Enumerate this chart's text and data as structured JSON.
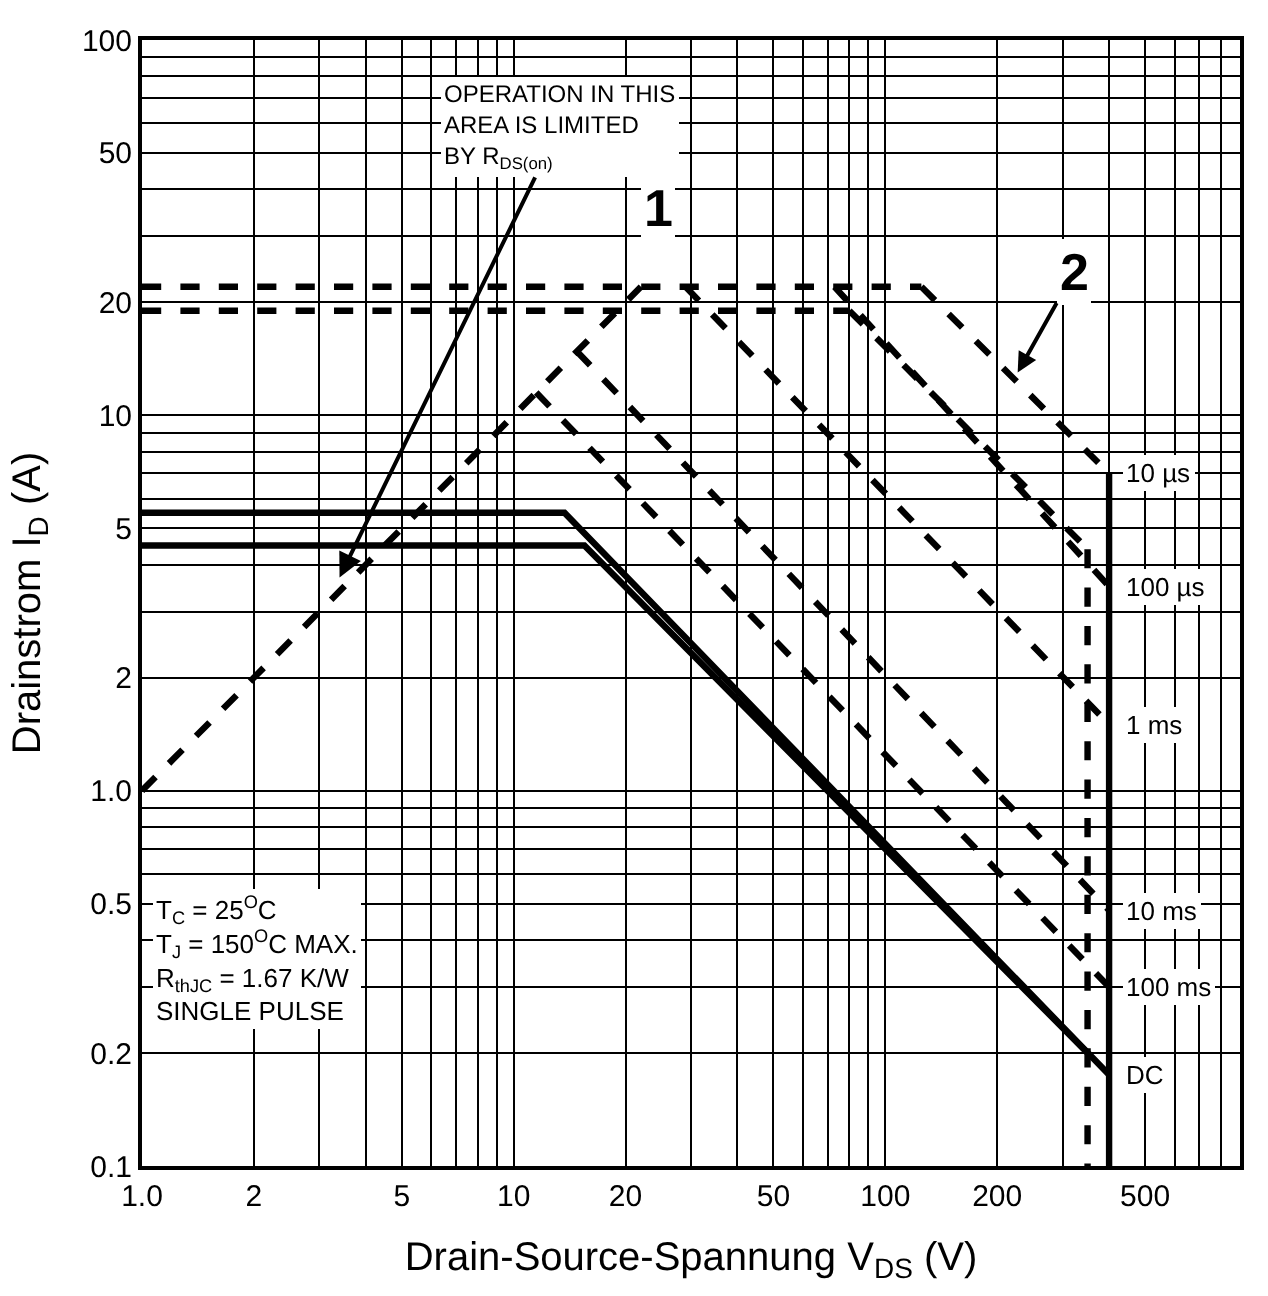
{
  "chart_data": {
    "type": "line",
    "xlabel": "Drain-Source-Spannung V$_{DS}$ (V)",
    "ylabel": "Drainstrom I$_{D}$ (A)",
    "log": "xy",
    "grid": true,
    "marker": "none",
    "xlim": [
      1,
      900
    ],
    "ylim": [
      0.1,
      100
    ],
    "xticks": [
      {
        "value": 1,
        "label": "1.0"
      },
      2,
      5,
      10,
      20,
      50,
      100,
      200,
      500
    ],
    "yticks": [
      0.1,
      0.2,
      0.5,
      {
        "value": 1,
        "label": "1.0"
      },
      2,
      5,
      10,
      20,
      50,
      100
    ],
    "series": [
      {
        "color": "#000000",
        "line_style": "dashed",
        "x": [
          1,
          22
        ],
        "values": [
          1,
          22
        ]
      },
      {
        "color": "#000000",
        "line_style": "dashed",
        "x": [
          1,
          125
        ],
        "values": [
          22,
          22
        ]
      },
      {
        "color": "#000000",
        "line_style": "dashed",
        "x": [
          1,
          80
        ],
        "values": [
          19,
          19
        ]
      },
      {
        "color": "#000000",
        "line_style": "dashed",
        "x": [
          125,
          400
        ],
        "values": [
          22,
          7
        ]
      },
      {
        "color": "#000000",
        "line_style": "dashed",
        "x": [
          80,
          350
        ],
        "values": [
          19,
          4.4
        ]
      },
      {
        "color": "#000000",
        "line_style": "dashed",
        "x": [
          73,
          400
        ],
        "values": [
          22,
          3.5
        ]
      },
      {
        "color": "#000000",
        "line_style": "dashed",
        "x": [
          29,
          400
        ],
        "values": [
          22,
          1.5
        ]
      },
      {
        "color": "#000000",
        "line_style": "dashed",
        "x": [
          14.8,
          400
        ],
        "values": [
          14.8,
          0.48
        ]
      },
      {
        "color": "#000000",
        "line_style": "dashed",
        "x": [
          11.5,
          400
        ],
        "values": [
          11.5,
          0.3
        ]
      },
      {
        "color": "#000000",
        "line_style": "solid",
        "x": [
          1,
          13.7,
          400
        ],
        "values": [
          5.5,
          5.5,
          0.175
        ]
      },
      {
        "color": "#000000",
        "line_style": "solid",
        "x": [
          1,
          15.5,
          350
        ],
        "values": [
          4.5,
          4.5,
          0.2
        ]
      },
      {
        "color": "#000000",
        "line_style": "solid",
        "x": [
          400,
          400
        ],
        "values": [
          7,
          0.1
        ]
      },
      {
        "color": "#000000",
        "line_style": "dashed",
        "x": [
          350,
          350
        ],
        "values": [
          4.4,
          0.1
        ]
      }
    ],
    "annotations": [
      "T$_{C}$ = 25$^{O}$C\nT$_{J}$ = 150$^{O}$C MAX.\nR$_{thJC}$ = 1.67 K/W\nSINGLE PULSE",
      {
        "text": "OPERATION IN THIS\nAREA IS LIMITED\nBY R$_{DS(on)}$",
        "x": 3.4,
        "y": 3.7
      },
      "1",
      {
        "text": "2",
        "x": 227,
        "y": 13
      },
      {
        "text": "10 µs",
        "x": 400,
        "y": 7
      },
      {
        "text": "100 µs",
        "x": 400,
        "y": 3.5
      },
      {
        "text": "1 ms",
        "x": 400,
        "y": 1.5
      },
      {
        "text": "10 ms",
        "x": 400,
        "y": 0.48
      },
      {
        "text": "100 ms",
        "x": 400,
        "y": 0.3
      },
      {
        "text": "DC",
        "x": 400,
        "y": 0.175
      }
    ]
  }
}
